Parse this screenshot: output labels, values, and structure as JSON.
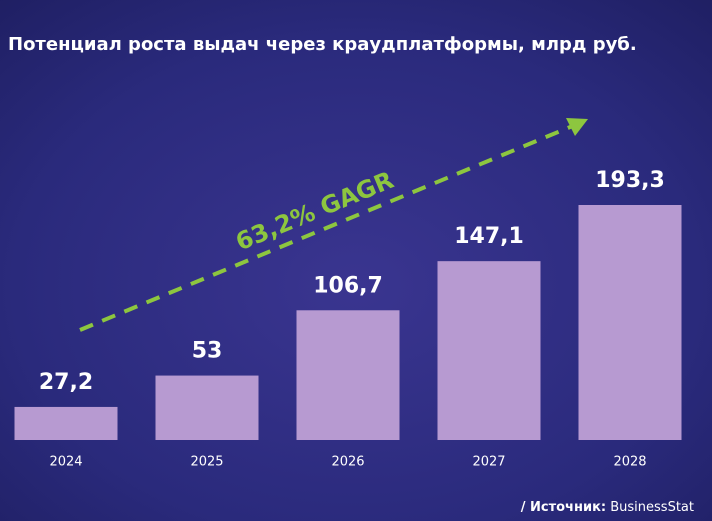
{
  "chart_data": {
    "type": "bar",
    "title": "Потенциал роста выдач через краудплатформы, млрд руб.",
    "categories": [
      "2024",
      "2025",
      "2026",
      "2027",
      "2028"
    ],
    "values": [
      27.2,
      53,
      106.7,
      147.1,
      193.3
    ],
    "value_labels": [
      "27,2",
      "53",
      "106,7",
      "147,1",
      "193,3"
    ],
    "color": "#b79ad1",
    "annotation": "63,2% GAGR",
    "source_label": "/ Источник:",
    "source": "BusinessStat"
  }
}
